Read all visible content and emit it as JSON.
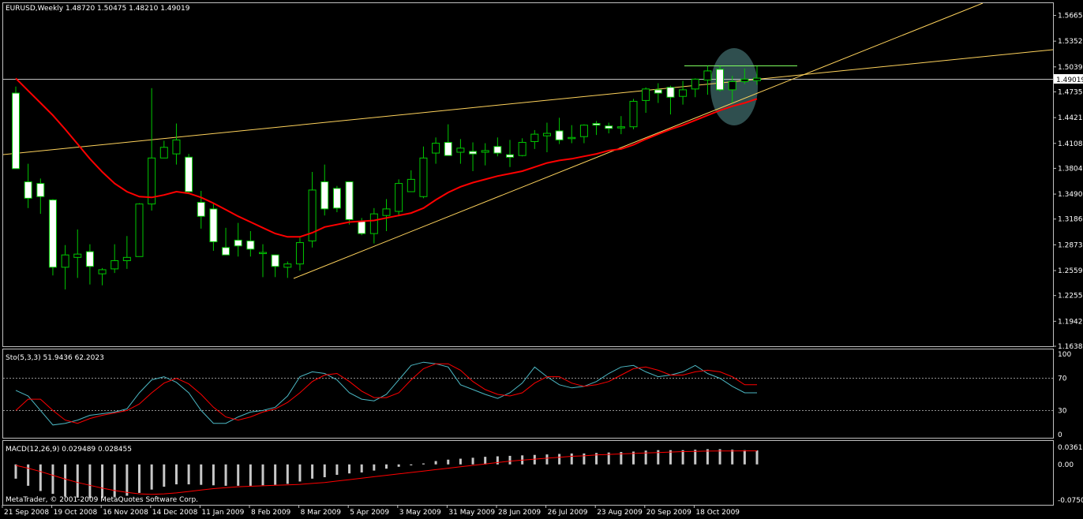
{
  "colors": {
    "background": "#000000",
    "frame": "#c0c0c0",
    "bull_candle": "#000000",
    "bear_candle": "#ffffff",
    "wick": "#00c800",
    "ma_line": "#ff0000",
    "trend_line": "#ffd35c",
    "resistance_line": "#7fff5f",
    "highlight": "#2f4f4f",
    "stoch_main": "#4cb8c4",
    "stoch_signal": "#ff0000",
    "macd_hist": "#c8c8c8",
    "macd_signal": "#ff0000",
    "level_line": "#c0c0c0"
  },
  "main_panel": {
    "header": "EURUSD,Weekly  1.48720 1.50475 1.48210 1.49019",
    "current_price": "1.49019",
    "price_ticks": [
      "1.56655",
      "1.53525",
      "1.50390",
      "1.47350",
      "1.44215",
      "1.41080",
      "1.38040",
      "1.34905",
      "1.31865",
      "1.28730",
      "1.25595",
      "1.22555",
      "1.19420",
      "1.16380"
    ]
  },
  "stoch_panel": {
    "header": "Sto(5,3,3) 51.9436 62.2023",
    "levels": [
      "100",
      "70",
      "30",
      "0"
    ]
  },
  "macd_panel": {
    "header": "MACD(12,26,9) 0.029489 0.028455",
    "ticks": [
      "0.03615",
      "0.00",
      "-0.07508"
    ],
    "footer": "MetaTrader, © 2001-2009 MetaQuotes Software Corp."
  },
  "x_axis": {
    "labels": [
      "21 Sep 2008",
      "19 Oct 2008",
      "16 Nov 2008",
      "14 Dec 2008",
      "11 Jan 2009",
      "8 Feb 2009",
      "8 Mar 2009",
      "5 Apr 2009",
      "3 May 2009",
      "31 May 2009",
      "28 Jun 2009",
      "26 Jul 2009",
      "23 Aug 2009",
      "20 Sep 2009",
      "18 Oct 2009"
    ]
  },
  "chart_data": {
    "type": "candlestick",
    "symbol": "EURUSD",
    "timeframe": "Weekly",
    "ylim": [
      1.1638,
      1.5815
    ],
    "candles": [
      {
        "o": 1.472,
        "h": 1.48,
        "l": 1.38,
        "c": 1.38
      },
      {
        "o": 1.364,
        "h": 1.386,
        "l": 1.332,
        "c": 1.344
      },
      {
        "o": 1.362,
        "h": 1.368,
        "l": 1.325,
        "c": 1.346
      },
      {
        "o": 1.342,
        "h": 1.343,
        "l": 1.25,
        "c": 1.26
      },
      {
        "o": 1.26,
        "h": 1.287,
        "l": 1.233,
        "c": 1.275
      },
      {
        "o": 1.272,
        "h": 1.306,
        "l": 1.247,
        "c": 1.276
      },
      {
        "o": 1.279,
        "h": 1.288,
        "l": 1.239,
        "c": 1.261
      },
      {
        "o": 1.252,
        "h": 1.259,
        "l": 1.238,
        "c": 1.257
      },
      {
        "o": 1.258,
        "h": 1.288,
        "l": 1.253,
        "c": 1.268
      },
      {
        "o": 1.268,
        "h": 1.298,
        "l": 1.258,
        "c": 1.272
      },
      {
        "o": 1.273,
        "h": 1.338,
        "l": 1.273,
        "c": 1.337
      },
      {
        "o": 1.337,
        "h": 1.478,
        "l": 1.329,
        "c": 1.393
      },
      {
        "o": 1.393,
        "h": 1.414,
        "l": 1.394,
        "c": 1.406
      },
      {
        "o": 1.398,
        "h": 1.435,
        "l": 1.385,
        "c": 1.415
      },
      {
        "o": 1.394,
        "h": 1.398,
        "l": 1.349,
        "c": 1.352
      },
      {
        "o": 1.339,
        "h": 1.353,
        "l": 1.307,
        "c": 1.322
      },
      {
        "o": 1.331,
        "h": 1.338,
        "l": 1.28,
        "c": 1.291
      },
      {
        "o": 1.284,
        "h": 1.308,
        "l": 1.277,
        "c": 1.275
      },
      {
        "o": 1.293,
        "h": 1.314,
        "l": 1.273,
        "c": 1.286
      },
      {
        "o": 1.292,
        "h": 1.304,
        "l": 1.273,
        "c": 1.282
      },
      {
        "o": 1.277,
        "h": 1.288,
        "l": 1.248,
        "c": 1.278
      },
      {
        "o": 1.275,
        "h": 1.275,
        "l": 1.248,
        "c": 1.261
      },
      {
        "o": 1.26,
        "h": 1.267,
        "l": 1.247,
        "c": 1.264
      },
      {
        "o": 1.264,
        "h": 1.296,
        "l": 1.256,
        "c": 1.29
      },
      {
        "o": 1.292,
        "h": 1.376,
        "l": 1.284,
        "c": 1.354
      },
      {
        "o": 1.364,
        "h": 1.385,
        "l": 1.323,
        "c": 1.331
      },
      {
        "o": 1.356,
        "h": 1.359,
        "l": 1.327,
        "c": 1.332
      },
      {
        "o": 1.364,
        "h": 1.364,
        "l": 1.312,
        "c": 1.318
      },
      {
        "o": 1.316,
        "h": 1.32,
        "l": 1.299,
        "c": 1.301
      },
      {
        "o": 1.301,
        "h": 1.332,
        "l": 1.289,
        "c": 1.325
      },
      {
        "o": 1.323,
        "h": 1.343,
        "l": 1.304,
        "c": 1.331
      },
      {
        "o": 1.328,
        "h": 1.367,
        "l": 1.322,
        "c": 1.362
      },
      {
        "o": 1.352,
        "h": 1.378,
        "l": 1.353,
        "c": 1.367
      },
      {
        "o": 1.346,
        "h": 1.407,
        "l": 1.344,
        "c": 1.393
      },
      {
        "o": 1.399,
        "h": 1.418,
        "l": 1.386,
        "c": 1.411
      },
      {
        "o": 1.412,
        "h": 1.434,
        "l": 1.396,
        "c": 1.396
      },
      {
        "o": 1.4,
        "h": 1.416,
        "l": 1.386,
        "c": 1.405
      },
      {
        "o": 1.401,
        "h": 1.412,
        "l": 1.377,
        "c": 1.398
      },
      {
        "o": 1.4,
        "h": 1.411,
        "l": 1.384,
        "c": 1.402
      },
      {
        "o": 1.407,
        "h": 1.418,
        "l": 1.395,
        "c": 1.399
      },
      {
        "o": 1.397,
        "h": 1.415,
        "l": 1.382,
        "c": 1.394
      },
      {
        "o": 1.396,
        "h": 1.417,
        "l": 1.395,
        "c": 1.412
      },
      {
        "o": 1.413,
        "h": 1.427,
        "l": 1.404,
        "c": 1.422
      },
      {
        "o": 1.42,
        "h": 1.436,
        "l": 1.4,
        "c": 1.423
      },
      {
        "o": 1.426,
        "h": 1.442,
        "l": 1.41,
        "c": 1.415
      },
      {
        "o": 1.417,
        "h": 1.433,
        "l": 1.411,
        "c": 1.418
      },
      {
        "o": 1.419,
        "h": 1.434,
        "l": 1.411,
        "c": 1.433
      },
      {
        "o": 1.435,
        "h": 1.438,
        "l": 1.421,
        "c": 1.433
      },
      {
        "o": 1.432,
        "h": 1.436,
        "l": 1.423,
        "c": 1.429
      },
      {
        "o": 1.431,
        "h": 1.444,
        "l": 1.422,
        "c": 1.431
      },
      {
        "o": 1.431,
        "h": 1.465,
        "l": 1.428,
        "c": 1.462
      },
      {
        "o": 1.463,
        "h": 1.479,
        "l": 1.448,
        "c": 1.477
      },
      {
        "o": 1.476,
        "h": 1.484,
        "l": 1.46,
        "c": 1.472
      },
      {
        "o": 1.479,
        "h": 1.481,
        "l": 1.446,
        "c": 1.467
      },
      {
        "o": 1.468,
        "h": 1.487,
        "l": 1.458,
        "c": 1.476
      },
      {
        "o": 1.477,
        "h": 1.49,
        "l": 1.467,
        "c": 1.489
      },
      {
        "o": 1.488,
        "h": 1.505,
        "l": 1.47,
        "c": 1.499
      },
      {
        "o": 1.501,
        "h": 1.505,
        "l": 1.474,
        "c": 1.476
      },
      {
        "o": 1.476,
        "h": 1.493,
        "l": 1.46,
        "c": 1.486
      },
      {
        "o": 1.486,
        "h": 1.502,
        "l": 1.483,
        "c": 1.489
      },
      {
        "o": 1.4872,
        "h": 1.50475,
        "l": 1.4821,
        "c": 1.49019
      }
    ],
    "ma_series": [
      1.49,
      1.475,
      1.46,
      1.445,
      1.428,
      1.41,
      1.392,
      1.376,
      1.362,
      1.352,
      1.346,
      1.345,
      1.348,
      1.352,
      1.35,
      1.345,
      1.338,
      1.33,
      1.322,
      1.315,
      1.308,
      1.301,
      1.297,
      1.297,
      1.302,
      1.309,
      1.312,
      1.315,
      1.316,
      1.317,
      1.32,
      1.323,
      1.326,
      1.332,
      1.342,
      1.351,
      1.358,
      1.363,
      1.367,
      1.371,
      1.374,
      1.377,
      1.382,
      1.387,
      1.39,
      1.392,
      1.395,
      1.398,
      1.402,
      1.404,
      1.409,
      1.416,
      1.422,
      1.428,
      1.433,
      1.439,
      1.445,
      1.451,
      1.456,
      1.46,
      1.465
    ],
    "stoch_main": [
      55,
      48,
      30,
      12,
      14,
      18,
      24,
      26,
      28,
      32,
      52,
      68,
      72,
      65,
      52,
      30,
      14,
      14,
      22,
      28,
      30,
      34,
      48,
      72,
      78,
      76,
      68,
      52,
      44,
      42,
      50,
      68,
      86,
      90,
      88,
      84,
      62,
      56,
      50,
      45,
      52,
      64,
      84,
      72,
      62,
      58,
      60,
      66,
      76,
      84,
      86,
      78,
      72,
      74,
      78,
      86,
      76,
      70,
      60,
      52,
      52
    ],
    "stoch_signal": [
      30,
      44,
      44,
      30,
      18,
      14,
      20,
      24,
      27,
      30,
      38,
      52,
      64,
      70,
      63,
      50,
      34,
      22,
      18,
      22,
      28,
      32,
      40,
      52,
      66,
      74,
      76,
      66,
      54,
      46,
      46,
      52,
      68,
      82,
      88,
      88,
      80,
      66,
      56,
      50,
      48,
      52,
      64,
      72,
      72,
      64,
      60,
      62,
      66,
      74,
      82,
      84,
      80,
      74,
      74,
      78,
      80,
      78,
      72,
      62,
      62
    ],
    "stoch_levels": [
      100,
      70,
      30,
      0
    ],
    "macd_hist": [
      -0.03,
      -0.045,
      -0.056,
      -0.062,
      -0.068,
      -0.07,
      -0.071,
      -0.07,
      -0.069,
      -0.066,
      -0.06,
      -0.053,
      -0.047,
      -0.042,
      -0.042,
      -0.043,
      -0.044,
      -0.045,
      -0.045,
      -0.045,
      -0.044,
      -0.043,
      -0.041,
      -0.036,
      -0.03,
      -0.027,
      -0.022,
      -0.019,
      -0.017,
      -0.013,
      -0.009,
      -0.005,
      -0.002,
      0.002,
      0.007,
      0.01,
      0.012,
      0.014,
      0.016,
      0.017,
      0.018,
      0.019,
      0.02,
      0.021,
      0.022,
      0.023,
      0.023,
      0.024,
      0.025,
      0.026,
      0.027,
      0.029,
      0.03,
      0.03,
      0.03,
      0.031,
      0.032,
      0.032,
      0.031,
      0.03,
      0.0295
    ],
    "macd_signal": [
      -0.002,
      -0.008,
      -0.015,
      -0.023,
      -0.031,
      -0.038,
      -0.044,
      -0.05,
      -0.055,
      -0.059,
      -0.062,
      -0.063,
      -0.062,
      -0.06,
      -0.057,
      -0.054,
      -0.051,
      -0.049,
      -0.047,
      -0.046,
      -0.045,
      -0.044,
      -0.043,
      -0.042,
      -0.04,
      -0.038,
      -0.035,
      -0.032,
      -0.029,
      -0.026,
      -0.023,
      -0.02,
      -0.017,
      -0.014,
      -0.011,
      -0.008,
      -0.005,
      -0.002,
      0.001,
      0.004,
      0.007,
      0.009,
      0.011,
      0.013,
      0.015,
      0.017,
      0.018,
      0.02,
      0.021,
      0.022,
      0.023,
      0.024,
      0.025,
      0.026,
      0.027,
      0.0275,
      0.028,
      0.0283,
      0.0284,
      0.0285,
      0.0285
    ]
  }
}
